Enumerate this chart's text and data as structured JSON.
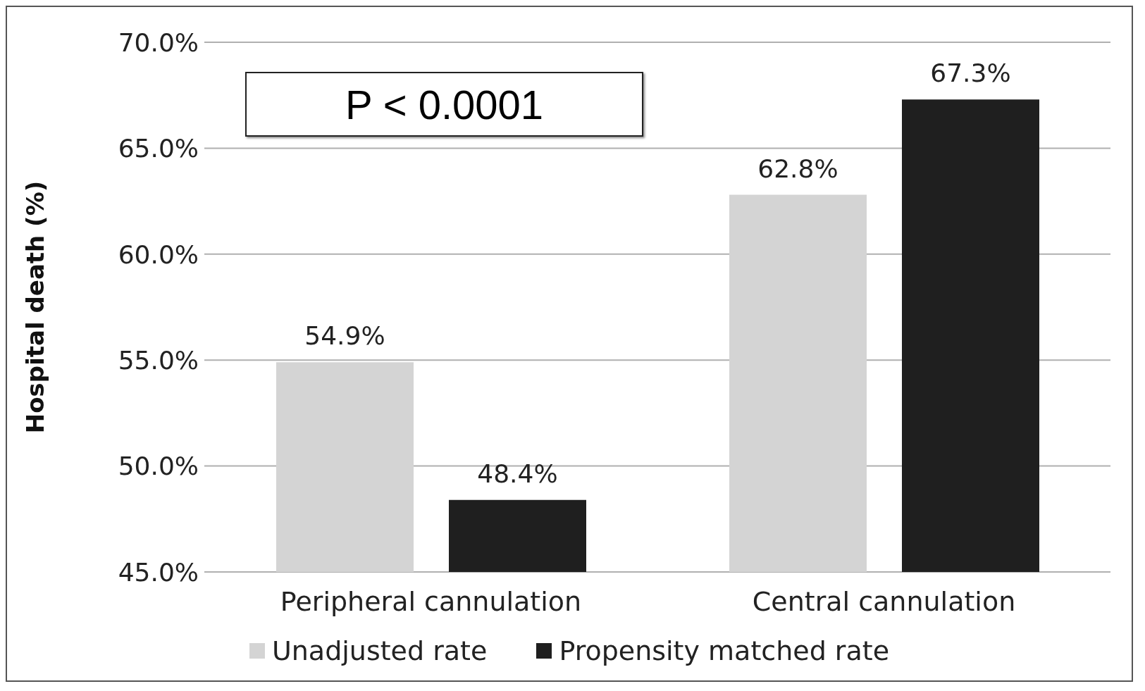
{
  "chart_data": {
    "type": "bar",
    "ylabel": "Hospital death (%)",
    "categories": [
      "Peripheral cannulation",
      "Central cannulation"
    ],
    "series": [
      {
        "name": "Unadjusted rate",
        "color": "#d4d4d4",
        "values": [
          54.9,
          62.8
        ],
        "value_labels": [
          "54.9%",
          "62.8%"
        ]
      },
      {
        "name": "Propensity matched rate",
        "color": "#1f1f1f",
        "values": [
          48.4,
          67.3
        ],
        "value_labels": [
          "48.4%",
          "67.3%"
        ]
      }
    ],
    "ylim": [
      45,
      70
    ],
    "yticks": [
      {
        "value": 45,
        "label": "45.0%"
      },
      {
        "value": 50,
        "label": "50.0%"
      },
      {
        "value": 55,
        "label": "55.0%"
      },
      {
        "value": 60,
        "label": "60.0%"
      },
      {
        "value": 65,
        "label": "65.0%"
      },
      {
        "value": 70,
        "label": "70.0%"
      }
    ],
    "grid": "y",
    "legend": "bottom",
    "annotations": [
      "P < 0.0001"
    ]
  }
}
